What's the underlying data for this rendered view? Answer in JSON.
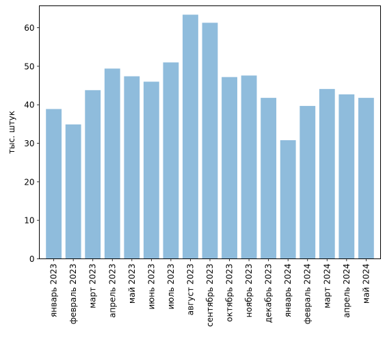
{
  "chart_data": {
    "type": "bar",
    "title": "",
    "xlabel": "",
    "ylabel": "тыс. штук",
    "ylim": [
      0,
      65.7
    ],
    "yticks": [
      0,
      10,
      20,
      30,
      40,
      50,
      60
    ],
    "grid": false,
    "bar_color": "#8fbcdc",
    "categories": [
      "январь 2023",
      "февраль 2023",
      "март 2023",
      "апрель 2023",
      "май 2023",
      "июнь 2023",
      "июль 2023",
      "август 2023",
      "сентябрь 2023",
      "октябрь 2023",
      "ноябрь 2023",
      "декабрь 2023",
      "январь 2024",
      "февраль 2024",
      "март 2024",
      "апрель 2024",
      "май 2024"
    ],
    "values": [
      38.9,
      34.9,
      43.8,
      49.4,
      47.4,
      46.0,
      51.0,
      63.4,
      61.3,
      47.2,
      47.6,
      41.8,
      30.8,
      39.7,
      44.1,
      42.7,
      41.8
    ]
  }
}
